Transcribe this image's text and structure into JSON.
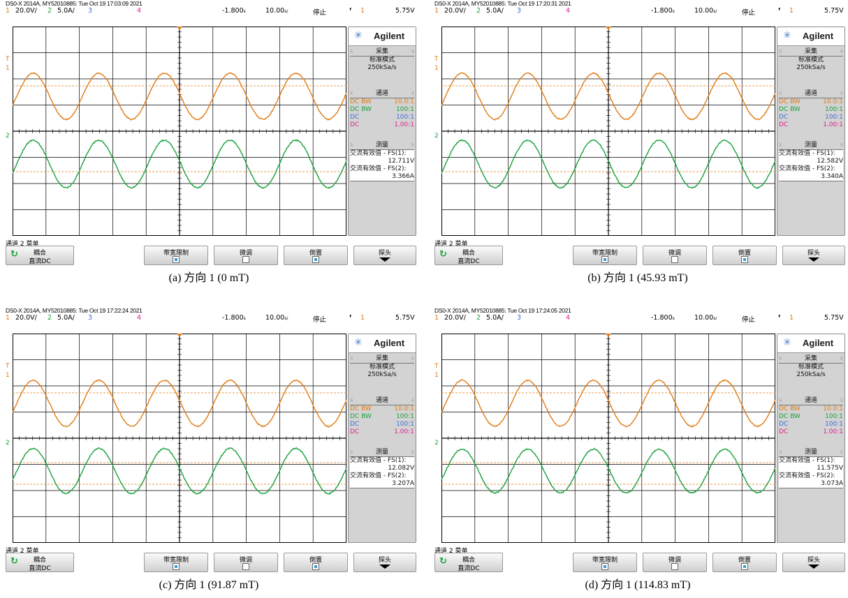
{
  "panels": [
    {
      "header": "DS0-X 2014A, MY52010885: Tue Oct 19 17:03:09 2021",
      "caption": "(a) 方向 1 (0 mT)",
      "fs1": "12.711V",
      "fs2": "3.366A",
      "ch2_offset_level": 0,
      "ch2_amplitude": 1.0
    },
    {
      "header": "DS0-X 2014A, MY52010885: Tue Oct 19 17:20:31 2021",
      "caption": "(b) 方向 1 (45.93 mT)",
      "fs1": "12.582V",
      "fs2": "3.340A",
      "ch2_offset_level": 0,
      "ch2_amplitude": 1.0
    },
    {
      "header": "DS0-X 2014A, MY52010885: Tue Oct 19 17:22:24 2021",
      "caption": "(c) 方向 1 (91.87 mT)",
      "fs1": "12.082V",
      "fs2": "3.207A",
      "ch2_offset_level": 0,
      "ch2_amplitude": 0.95
    },
    {
      "header": "DS0-X 2014A, MY52010885: Tue Oct 19 17:24:05 2021",
      "caption": "(d) 方向 1 (114.83 mT)",
      "fs1": "11.575V",
      "fs2": "3.073A",
      "ch2_offset_level": 0,
      "ch2_amplitude": 0.92
    }
  ],
  "status": {
    "ch1_num": "1",
    "ch1_scale": "20.0V/",
    "ch2_num": "2",
    "ch2_scale": "5.0A/",
    "ch3_num": "3",
    "ch4_num": "4",
    "time_offset": "-1.800",
    "time_offset_unit": "s",
    "time_scale": "10.00",
    "time_scale_unit": "s/",
    "run_state": "停止",
    "trig_icon": "ᶠ",
    "trig_ch": "1",
    "trig_level": "5.75V"
  },
  "side": {
    "brand": "Agilent",
    "acq_title": "采集",
    "acq_mode": "标准模式",
    "acq_rate": "250kSa/s",
    "ch_title": "通道",
    "channels": [
      {
        "coupling": "DC BW",
        "ratio": "10.0:1",
        "color": "#e07b16"
      },
      {
        "coupling": "DC BW",
        "ratio": "100:1",
        "color": "#1aa13a"
      },
      {
        "coupling": "DC",
        "ratio": "100:1",
        "color": "#3d6fd6"
      },
      {
        "coupling": "DC",
        "ratio": "1.00:1",
        "color": "#e0208c"
      }
    ],
    "meas_title": "测量",
    "meas1_label": "交流有效值 - FS(1):",
    "meas2_label": "交流有效值 - FS(2):"
  },
  "softkeys": {
    "menu_title": "通道 2 菜单",
    "coupling_label": "耦合",
    "coupling_value": "直流DC",
    "bw_limit": "带宽限制",
    "fine": "微调",
    "invert": "倒置",
    "probe": "探头"
  },
  "markers": {
    "ch1": "1",
    "ch2": "2",
    "trig": "T"
  },
  "colors": {
    "ch1": "#e07b16",
    "ch2": "#1aa13a",
    "ch3": "#3d6fd6",
    "ch4": "#e0208c",
    "grid": "#000000"
  }
}
